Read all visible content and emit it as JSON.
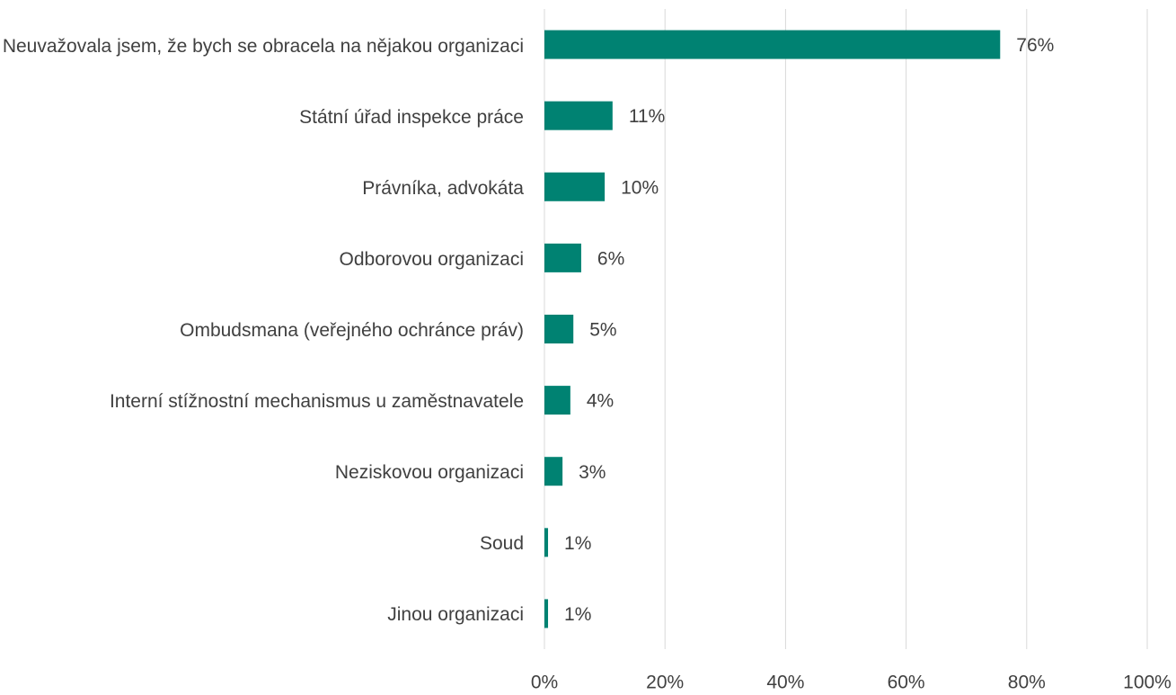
{
  "chart_data": {
    "type": "bar",
    "orientation": "horizontal",
    "categories": [
      "Neuvažovala jsem, že bych se obracela na nějakou organizaci",
      "Státní úřad inspekce práce",
      "Právníka, advokáta",
      "Odborovou organizaci",
      "Ombudsmana (veřejného ochránce práv)",
      "Interní stížnostní mechanismus u zaměstnavatele",
      "Neziskovou organizaci",
      "Soud",
      "Jinou organizaci"
    ],
    "values": [
      75.6,
      11.3,
      10,
      6.1,
      4.8,
      4.3,
      3,
      0.6,
      0.6
    ],
    "value_labels": [
      "76%",
      "11%",
      "10%",
      "6%",
      "5%",
      "4%",
      "3%",
      "1%",
      "1%"
    ],
    "color": "#008272",
    "xlim": [
      0,
      100
    ],
    "xticks": [
      {
        "value": 0,
        "label": "0%"
      },
      {
        "value": 20,
        "label": "20%"
      },
      {
        "value": 40,
        "label": "40%"
      },
      {
        "value": 60,
        "label": "60%"
      },
      {
        "value": 80,
        "label": "80%"
      },
      {
        "value": 100,
        "label": "100%"
      }
    ],
    "grid": true
  }
}
